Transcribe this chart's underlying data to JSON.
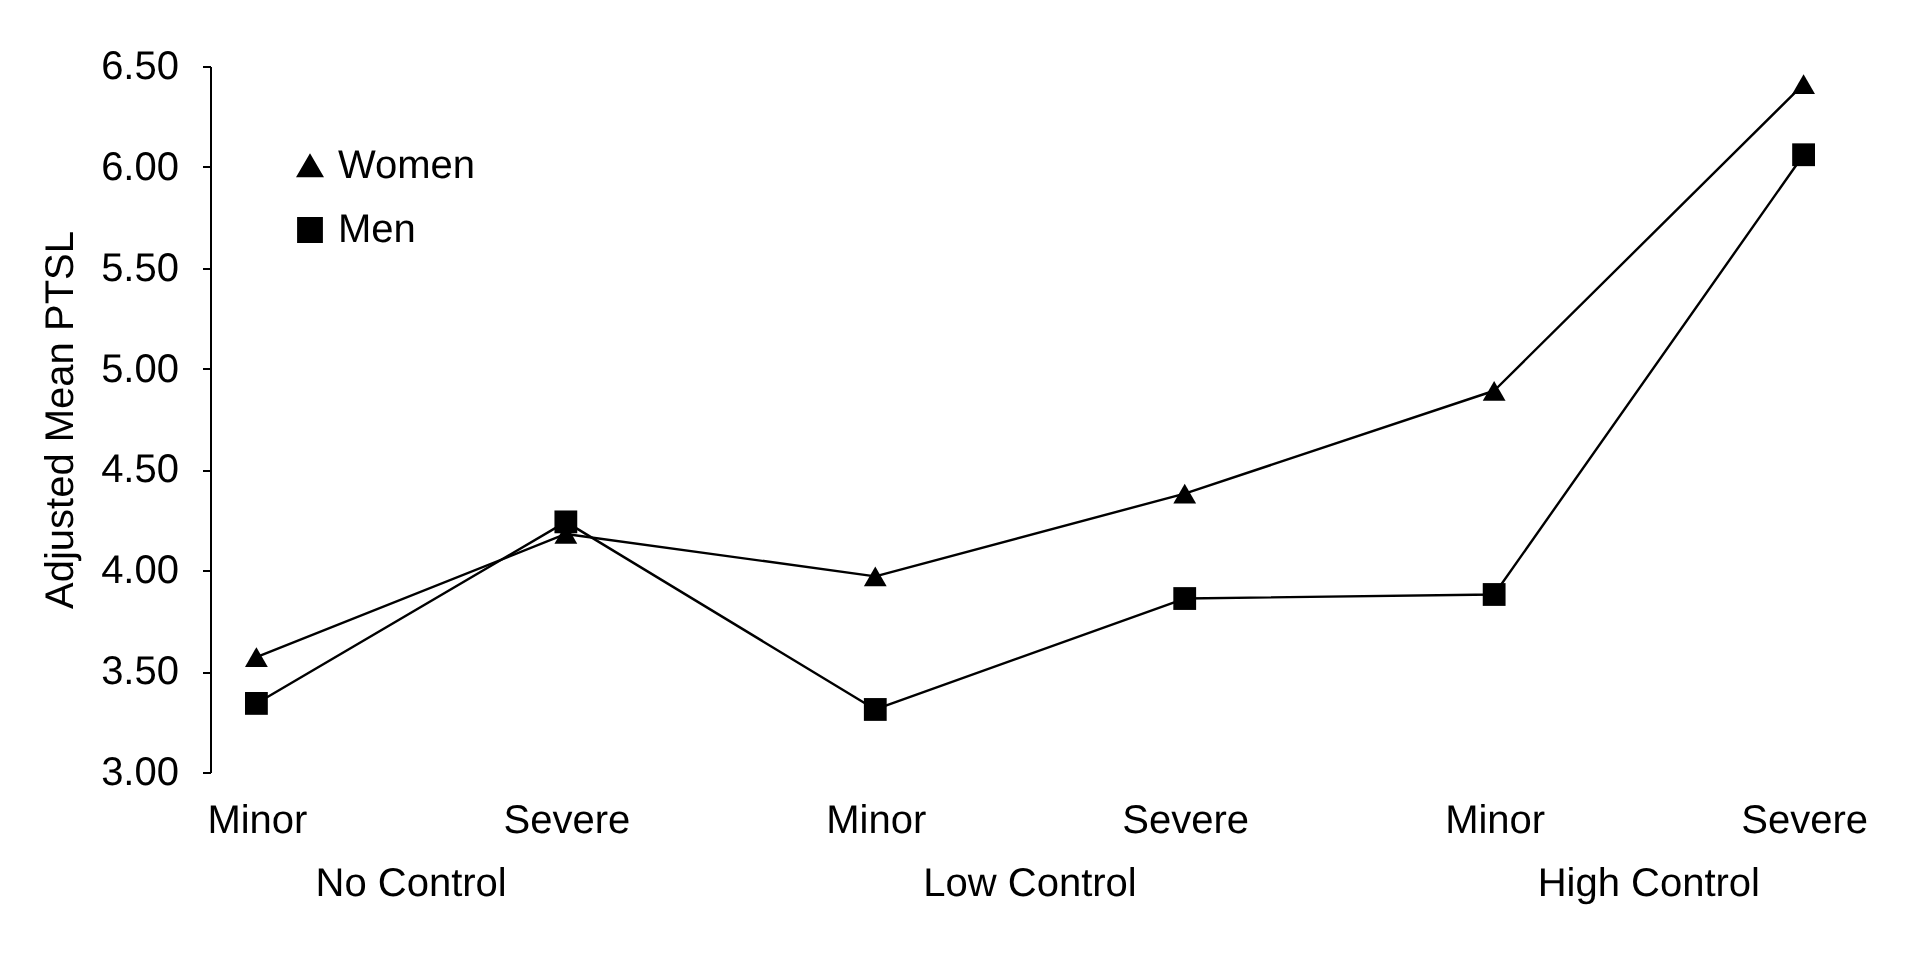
{
  "chart_data": {
    "type": "line",
    "ylabel": "Adjusted Mean PTSL",
    "categories": [
      "Minor",
      "Severe",
      "Minor",
      "Severe",
      "Minor",
      "Severe"
    ],
    "annotations": [
      "No Control",
      "Low Control",
      "High Control"
    ],
    "series": [
      {
        "name": "Women",
        "color": "#000000",
        "marker": "triangle",
        "values": [
          3.57,
          4.18,
          3.97,
          4.38,
          4.89,
          6.41
        ]
      },
      {
        "name": "Men",
        "color": "#000000",
        "marker": "square",
        "values": [
          3.34,
          4.24,
          3.31,
          3.86,
          3.88,
          6.06
        ]
      }
    ],
    "ylim": [
      3,
      6.5
    ],
    "yticks": [
      {
        "value": 3,
        "label": "3.00"
      },
      {
        "value": 3.5,
        "label": "3.50"
      },
      {
        "value": 4,
        "label": "4.00"
      },
      {
        "value": 4.5,
        "label": "4.50"
      },
      {
        "value": 5,
        "label": "5.00"
      },
      {
        "value": 5.5,
        "label": "5.50"
      },
      {
        "value": 6,
        "label": "6.00"
      },
      {
        "value": 6.5,
        "label": "6.50"
      }
    ],
    "grid": false,
    "legend": "top left",
    "line_style": "solid"
  }
}
